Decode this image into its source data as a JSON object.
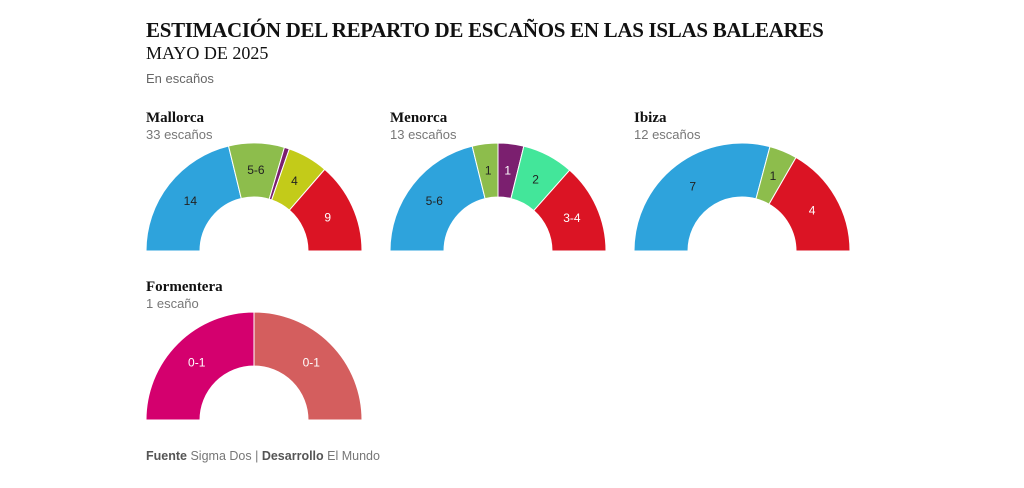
{
  "header": {
    "title": "ESTIMACIÓN DEL REPARTO DE ESCAÑOS EN LAS ISLAS BALEARES",
    "subtitle": "MAYO DE 2025",
    "units": "En escaños"
  },
  "chart_data": [
    {
      "type": "parliament-semicircle",
      "island": "Mallorca",
      "seats_label": "33 escaños",
      "total": 33,
      "slices": [
        {
          "value": 14,
          "label": "14",
          "color": "#2ea3dc"
        },
        {
          "value": 5.5,
          "label": "5-6",
          "color": "#8dbd4c"
        },
        {
          "value": 0.5,
          "label": "",
          "color": "#7b1f6f"
        },
        {
          "value": 4,
          "label": "4",
          "color": "#c3cb19"
        },
        {
          "value": 9,
          "label": "9",
          "color": "#db1424"
        }
      ]
    },
    {
      "type": "parliament-semicircle",
      "island": "Menorca",
      "seats_label": "13 escaños",
      "total": 13,
      "slices": [
        {
          "value": 5.5,
          "label": "5-6",
          "color": "#2ea3dc"
        },
        {
          "value": 1,
          "label": "1",
          "color": "#8dbd4c"
        },
        {
          "value": 1,
          "label": "1",
          "color": "#7b1f6f"
        },
        {
          "value": 2,
          "label": "2",
          "color": "#43e69a"
        },
        {
          "value": 3.5,
          "label": "3-4",
          "color": "#db1424"
        }
      ]
    },
    {
      "type": "parliament-semicircle",
      "island": "Ibiza",
      "seats_label": "12 escaños",
      "total": 12,
      "slices": [
        {
          "value": 7,
          "label": "7",
          "color": "#2ea3dc"
        },
        {
          "value": 1,
          "label": "1",
          "color": "#8dbd4c"
        },
        {
          "value": 4,
          "label": "4",
          "color": "#db1424"
        }
      ]
    },
    {
      "type": "parliament-semicircle",
      "island": "Formentera",
      "seats_label": "1 escaño",
      "total": 1,
      "slices": [
        {
          "value": 0.5,
          "label": "0-1",
          "color": "#d4006e"
        },
        {
          "value": 0.5,
          "label": "0-1",
          "color": "#d45e5e"
        }
      ]
    }
  ],
  "footer": {
    "source_label": "Fuente",
    "source": "Sigma Dos",
    "separator": "|",
    "dev_label": "Desarrollo",
    "dev": "El Mundo"
  }
}
